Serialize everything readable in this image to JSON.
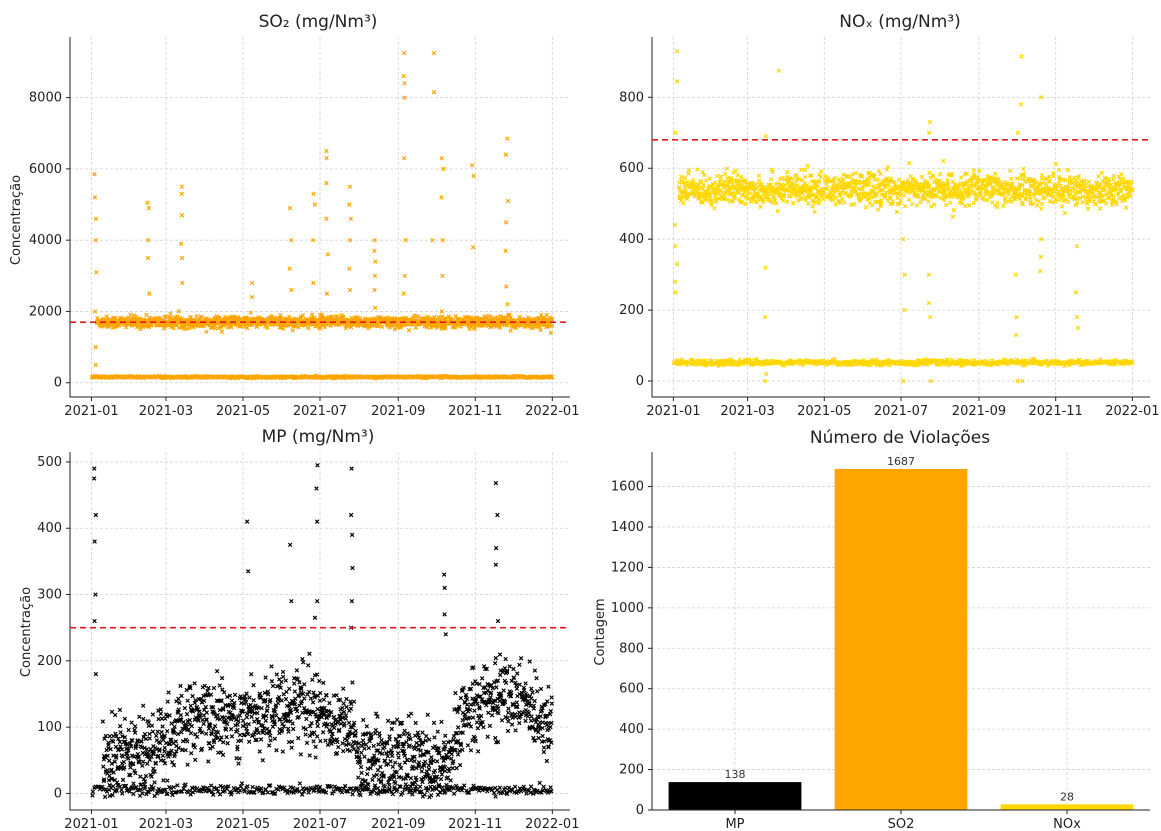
{
  "chart_data": [
    {
      "id": "so2",
      "type": "scatter",
      "title": "SO₂ (mg/Nm³)",
      "ylabel": "Concentração",
      "xlabel": "",
      "x_range": [
        "2020-12-15",
        "2022-01-15"
      ],
      "xticks": [
        "2021-01",
        "2021-03",
        "2021-05",
        "2021-07",
        "2021-09",
        "2021-11",
        "2022-01"
      ],
      "ylim": [
        -400,
        9700
      ],
      "yticks": [
        0,
        2000,
        4000,
        6000,
        8000
      ],
      "grid": true,
      "color": "#ffa500",
      "marker": "x",
      "limit_line": 1700,
      "limit_color": "#e31a1c",
      "clusters": [
        {
          "band": "primary",
          "level": 1700,
          "spread": 160,
          "from": "2021-01-05",
          "to": "2021-12-31"
        },
        {
          "band": "baseline",
          "level": 160,
          "spread": 25,
          "from": "2021-01-01",
          "to": "2021-12-31"
        }
      ],
      "spikes": [
        {
          "date": "2021-01-04",
          "values": [
            500,
            1000,
            2000,
            3100,
            4000,
            4600,
            5200,
            5850
          ]
        },
        {
          "date": "2021-02-15",
          "values": [
            2500,
            3500,
            4000,
            4900,
            5050
          ]
        },
        {
          "date": "2021-03-14",
          "values": [
            2800,
            3500,
            3900,
            4700,
            5300,
            5500
          ]
        },
        {
          "date": "2021-05-08",
          "values": [
            2400,
            2800
          ]
        },
        {
          "date": "2021-06-08",
          "values": [
            2600,
            3200,
            4000,
            4900
          ]
        },
        {
          "date": "2021-06-26",
          "values": [
            2800,
            4000,
            5000,
            5300
          ]
        },
        {
          "date": "2021-07-07",
          "values": [
            2500,
            3600,
            4600,
            5600,
            6300,
            6500
          ]
        },
        {
          "date": "2021-07-25",
          "values": [
            2600,
            3200,
            4000,
            4600,
            5000,
            5500
          ]
        },
        {
          "date": "2021-08-14",
          "values": [
            2100,
            2600,
            3000,
            3400,
            3700,
            4000
          ]
        },
        {
          "date": "2021-09-06",
          "values": [
            2500,
            3000,
            4000,
            6300,
            8000,
            8400,
            8600,
            9250
          ]
        },
        {
          "date": "2021-09-29",
          "values": [
            4000,
            8150,
            9250
          ]
        },
        {
          "date": "2021-10-06",
          "values": [
            2000,
            3000,
            4000,
            5200,
            6000,
            6300
          ]
        },
        {
          "date": "2021-10-30",
          "values": [
            3800,
            5800,
            6100
          ]
        },
        {
          "date": "2021-11-26",
          "values": [
            2200,
            2700,
            3700,
            4500,
            5100,
            6400,
            6850
          ]
        }
      ]
    },
    {
      "id": "nox",
      "type": "scatter",
      "title": "NOₓ (mg/Nm³)",
      "ylabel": "",
      "xlabel": "",
      "x_range": [
        "2020-12-15",
        "2022-01-15"
      ],
      "xticks": [
        "2021-01",
        "2021-03",
        "2021-05",
        "2021-07",
        "2021-09",
        "2021-11",
        "2022-01"
      ],
      "ylim": [
        -45,
        970
      ],
      "yticks": [
        0,
        200,
        400,
        600,
        800
      ],
      "grid": true,
      "color": "#ffd700",
      "marker": "x",
      "limit_line": 680,
      "limit_color": "#e31a1c",
      "clusters": [
        {
          "band": "primary",
          "level": 540,
          "spread": 45,
          "from": "2021-01-05",
          "to": "2021-12-31"
        },
        {
          "band": "baseline",
          "level": 52,
          "spread": 7,
          "from": "2021-01-01",
          "to": "2021-12-31"
        }
      ],
      "spikes": [
        {
          "date": "2021-01-03",
          "values": [
            250,
            280,
            330,
            380,
            440,
            700,
            845,
            930
          ]
        },
        {
          "date": "2021-03-15",
          "values": [
            0,
            20,
            180,
            320,
            690
          ]
        },
        {
          "date": "2021-03-26",
          "values": [
            875
          ]
        },
        {
          "date": "2021-07-03",
          "values": [
            0,
            200,
            300,
            400
          ]
        },
        {
          "date": "2021-07-24",
          "values": [
            0,
            180,
            220,
            300,
            700,
            730
          ]
        },
        {
          "date": "2021-10-01",
          "values": [
            0,
            130,
            180,
            300,
            700
          ]
        },
        {
          "date": "2021-10-05",
          "values": [
            0,
            780,
            915
          ]
        },
        {
          "date": "2021-10-20",
          "values": [
            310,
            350,
            400,
            800
          ]
        },
        {
          "date": "2021-11-18",
          "values": [
            150,
            180,
            250,
            380
          ]
        }
      ]
    },
    {
      "id": "mp",
      "type": "scatter",
      "title": "MP (mg/Nm³)",
      "ylabel": "Concentração",
      "xlabel": "",
      "x_range": [
        "2020-12-15",
        "2022-01-15"
      ],
      "xticks": [
        "2021-01",
        "2021-03",
        "2021-05",
        "2021-07",
        "2021-09",
        "2021-11",
        "2022-01"
      ],
      "ylim": [
        -25,
        515
      ],
      "yticks": [
        0,
        100,
        200,
        300,
        400,
        500
      ],
      "grid": true,
      "color": "#000000",
      "marker": "x",
      "limit_line": 250,
      "limit_color": "#e31a1c",
      "trend": [
        {
          "date": "2021-01-10",
          "level": 55
        },
        {
          "date": "2021-02-15",
          "level": 60
        },
        {
          "date": "2021-03-20",
          "level": 110
        },
        {
          "date": "2021-05-01",
          "level": 115
        },
        {
          "date": "2021-06-15",
          "level": 135
        },
        {
          "date": "2021-07-25",
          "level": 100
        },
        {
          "date": "2021-08-01",
          "level": 45
        },
        {
          "date": "2021-09-15",
          "level": 60
        },
        {
          "date": "2021-10-10",
          "level": 35
        },
        {
          "date": "2021-10-25",
          "level": 130
        },
        {
          "date": "2021-11-25",
          "level": 150
        },
        {
          "date": "2021-12-31",
          "level": 110
        }
      ],
      "trend_spread": 28,
      "baseline": {
        "level": 5,
        "spread": 4
      },
      "spikes": [
        {
          "date": "2021-01-04",
          "values": [
            180,
            260,
            300,
            380,
            420,
            475,
            490
          ]
        },
        {
          "date": "2021-05-05",
          "values": [
            335,
            410
          ]
        },
        {
          "date": "2021-06-08",
          "values": [
            290,
            375
          ]
        },
        {
          "date": "2021-06-28",
          "values": [
            265,
            290,
            410,
            460,
            495
          ]
        },
        {
          "date": "2021-07-26",
          "values": [
            250,
            290,
            340,
            390,
            420,
            490
          ]
        },
        {
          "date": "2021-10-08",
          "values": [
            240,
            270,
            310,
            330
          ]
        },
        {
          "date": "2021-11-18",
          "values": [
            260,
            345,
            370,
            420,
            468
          ]
        }
      ]
    },
    {
      "id": "violations",
      "type": "bar",
      "title": "Número de Violações",
      "xlabel": "",
      "ylabel": "Contagem",
      "categories": [
        "MP",
        "SO2",
        "NOx"
      ],
      "values": [
        138,
        1687,
        28
      ],
      "colors": [
        "#000000",
        "#ffa500",
        "#ffd700"
      ],
      "ylim": [
        0,
        1771
      ],
      "yticks": [
        0,
        200,
        400,
        600,
        800,
        1000,
        1200,
        1400,
        1600
      ],
      "grid": true
    }
  ]
}
